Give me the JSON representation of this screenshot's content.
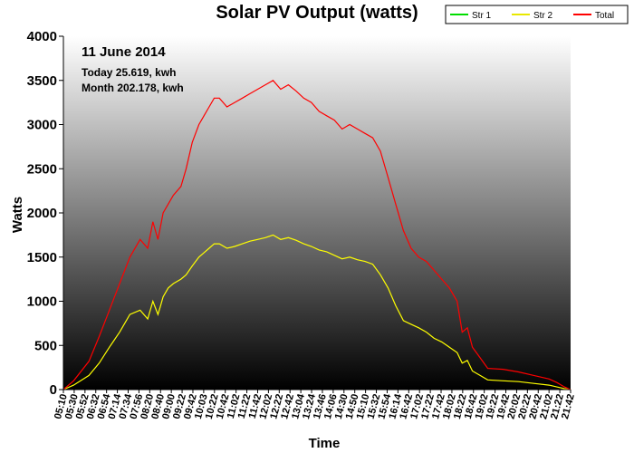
{
  "chart_data": {
    "type": "line",
    "title": "Solar PV Output (watts)",
    "xlabel": "Time",
    "ylabel": "Watts",
    "ylim": [
      0,
      4000
    ],
    "yticks": [
      0,
      500,
      1000,
      1500,
      2000,
      2500,
      3000,
      3500,
      4000
    ],
    "xlim": [
      "05:10",
      "21:42"
    ],
    "x_tick_labels": [
      "05:10",
      "05:30",
      "05:52",
      "06:32",
      "06:54",
      "07:14",
      "07:34",
      "07:56",
      "08:20",
      "08:40",
      "09:00",
      "09:22",
      "09:42",
      "10:03",
      "10:22",
      "10:42",
      "11:02",
      "11:22",
      "11:42",
      "12:02",
      "12:22",
      "12:42",
      "13:04",
      "13:24",
      "13:46",
      "14:06",
      "14:30",
      "14:50",
      "15:10",
      "15:32",
      "15:54",
      "16:14",
      "16:42",
      "17:02",
      "17:22",
      "17:42",
      "18:02",
      "18:22",
      "18:42",
      "19:02",
      "19:22",
      "19:42",
      "20:02",
      "20:22",
      "20:42",
      "21:02",
      "21:22",
      "21:42"
    ],
    "grid": false,
    "legend": "top-right",
    "series": [
      {
        "name": "Str 1",
        "color": "#00dd00",
        "x": [],
        "y": []
      },
      {
        "name": "Str 2",
        "color": "#ffff00",
        "x": [
          "05:10",
          "05:30",
          "06:00",
          "06:20",
          "06:40",
          "07:00",
          "07:20",
          "07:40",
          "07:55",
          "08:05",
          "08:15",
          "08:20",
          "08:25",
          "08:35",
          "08:45",
          "09:00",
          "09:10",
          "09:22",
          "09:35",
          "09:45",
          "09:55",
          "10:05",
          "10:15",
          "10:30",
          "10:45",
          "11:00",
          "11:15",
          "11:30",
          "11:45",
          "12:00",
          "12:15",
          "12:30",
          "12:45",
          "13:00",
          "13:15",
          "13:30",
          "13:45",
          "14:00",
          "14:15",
          "14:30",
          "14:45",
          "15:00",
          "15:15",
          "15:30",
          "15:45",
          "16:00",
          "16:15",
          "16:30",
          "16:45",
          "17:00",
          "17:15",
          "17:30",
          "17:45",
          "18:00",
          "18:10",
          "18:20",
          "18:30",
          "18:45",
          "19:00",
          "19:30",
          "20:00",
          "20:30",
          "21:00",
          "21:15",
          "21:30",
          "21:42"
        ],
        "y": [
          0,
          50,
          160,
          300,
          480,
          650,
          850,
          900,
          800,
          1000,
          850,
          950,
          1050,
          1150,
          1200,
          1250,
          1300,
          1400,
          1500,
          1550,
          1600,
          1650,
          1650,
          1600,
          1620,
          1650,
          1680,
          1700,
          1720,
          1750,
          1700,
          1720,
          1690,
          1650,
          1620,
          1580,
          1560,
          1520,
          1480,
          1500,
          1470,
          1450,
          1420,
          1300,
          1150,
          950,
          780,
          740,
          700,
          650,
          580,
          540,
          480,
          420,
          300,
          330,
          210,
          160,
          110,
          100,
          90,
          70,
          50,
          30,
          10,
          0
        ]
      },
      {
        "name": "Total",
        "color": "#ff0000",
        "x": [
          "05:10",
          "05:30",
          "06:00",
          "06:20",
          "06:40",
          "07:00",
          "07:20",
          "07:40",
          "07:55",
          "08:05",
          "08:15",
          "08:20",
          "08:25",
          "08:35",
          "08:45",
          "09:00",
          "09:10",
          "09:22",
          "09:35",
          "09:45",
          "09:55",
          "10:05",
          "10:15",
          "10:30",
          "10:45",
          "11:00",
          "11:15",
          "11:30",
          "11:45",
          "12:00",
          "12:15",
          "12:30",
          "12:45",
          "13:00",
          "13:15",
          "13:30",
          "13:45",
          "14:00",
          "14:15",
          "14:30",
          "14:45",
          "15:00",
          "15:15",
          "15:30",
          "15:45",
          "16:00",
          "16:15",
          "16:30",
          "16:45",
          "17:00",
          "17:15",
          "17:30",
          "17:45",
          "18:00",
          "18:10",
          "18:20",
          "18:30",
          "18:45",
          "19:00",
          "19:30",
          "20:00",
          "20:30",
          "21:00",
          "21:15",
          "21:30",
          "21:42"
        ],
        "y": [
          0,
          100,
          320,
          600,
          900,
          1200,
          1500,
          1700,
          1600,
          1900,
          1700,
          1850,
          2000,
          2100,
          2200,
          2300,
          2500,
          2800,
          3000,
          3100,
          3200,
          3300,
          3300,
          3200,
          3250,
          3300,
          3350,
          3400,
          3450,
          3500,
          3400,
          3450,
          3380,
          3300,
          3250,
          3150,
          3100,
          3050,
          2950,
          3000,
          2950,
          2900,
          2850,
          2700,
          2400,
          2100,
          1800,
          1600,
          1500,
          1450,
          1350,
          1250,
          1150,
          1000,
          650,
          700,
          480,
          360,
          240,
          230,
          200,
          160,
          120,
          80,
          30,
          0
        ]
      }
    ],
    "annotations": [
      "11 June 2014",
      "Today 25.619, kwh",
      "Month 202.178, kwh"
    ]
  }
}
